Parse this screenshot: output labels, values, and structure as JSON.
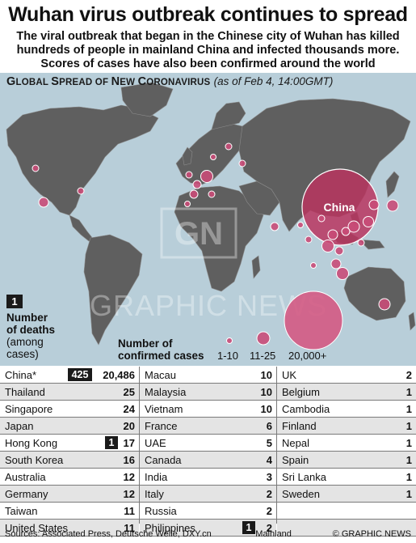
{
  "title": "Wuhan virus outbreak continues to spread",
  "intro": "The viral outbreak that began in the Chinese city of Wuhan has killed hundreds of people in mainland China and infected thousands more. Scores of cases have also been confirmed around the world",
  "map": {
    "title_G": "G",
    "title_lobal": "LOBAL ",
    "title_S": "S",
    "title_pread": "PREAD OF ",
    "title_N": "N",
    "title_ew": "EW ",
    "title_C": "C",
    "title_oronavirus": "ORONAVIRUS",
    "as_of": "(as of Feb 4, 14:00GMT)",
    "china_label": "China",
    "watermark_logo": "GN",
    "watermark_text": "GRAPHIC NEWS",
    "colors": {
      "ocean": "#b8ced9",
      "land": "#5f5f5f",
      "borders": "#8c8c8c",
      "bubble_fill": "#c94d78",
      "bubble_stroke": "#ffffff",
      "china_bubble": "#b9355f"
    }
  },
  "legend": {
    "deaths_box": "1",
    "deaths_line1": "Number",
    "deaths_line2": "of deaths",
    "deaths_line3": "(among",
    "deaths_line4": "cases)",
    "cases_line1": "Number of",
    "cases_line2": "confirmed cases",
    "size1": "1-10",
    "size2": "11-25",
    "size3": "20,000+"
  },
  "table": {
    "col1": [
      {
        "country": "China*",
        "deaths": "425",
        "cases": "20,486"
      },
      {
        "country": "Thailand",
        "deaths": "",
        "cases": "25"
      },
      {
        "country": "Singapore",
        "deaths": "",
        "cases": "24"
      },
      {
        "country": "Japan",
        "deaths": "",
        "cases": "20"
      },
      {
        "country": "Hong Kong",
        "deaths": "1",
        "cases": "17"
      },
      {
        "country": "South Korea",
        "deaths": "",
        "cases": "16"
      },
      {
        "country": "Australia",
        "deaths": "",
        "cases": "12"
      },
      {
        "country": "Germany",
        "deaths": "",
        "cases": "12"
      },
      {
        "country": "Taiwan",
        "deaths": "",
        "cases": "11"
      },
      {
        "country": "United States",
        "deaths": "",
        "cases": "11"
      }
    ],
    "col2": [
      {
        "country": "Macau",
        "deaths": "",
        "cases": "10"
      },
      {
        "country": "Malaysia",
        "deaths": "",
        "cases": "10"
      },
      {
        "country": "Vietnam",
        "deaths": "",
        "cases": "10"
      },
      {
        "country": "France",
        "deaths": "",
        "cases": "6"
      },
      {
        "country": "UAE",
        "deaths": "",
        "cases": "5"
      },
      {
        "country": "Canada",
        "deaths": "",
        "cases": "4"
      },
      {
        "country": "India",
        "deaths": "",
        "cases": "3"
      },
      {
        "country": "Italy",
        "deaths": "",
        "cases": "2"
      },
      {
        "country": "Russia",
        "deaths": "",
        "cases": "2"
      },
      {
        "country": "Philippines",
        "deaths": "1",
        "cases": "2"
      }
    ],
    "col3": [
      {
        "country": "UK",
        "deaths": "",
        "cases": "2"
      },
      {
        "country": "Belgium",
        "deaths": "",
        "cases": "1"
      },
      {
        "country": "Cambodia",
        "deaths": "",
        "cases": "1"
      },
      {
        "country": "Finland",
        "deaths": "",
        "cases": "1"
      },
      {
        "country": "Nepal",
        "deaths": "",
        "cases": "1"
      },
      {
        "country": "Spain",
        "deaths": "",
        "cases": "1"
      },
      {
        "country": "Sri Lanka",
        "deaths": "",
        "cases": "1"
      },
      {
        "country": "Sweden",
        "deaths": "",
        "cases": "1"
      },
      {
        "country": "",
        "deaths": "",
        "cases": ""
      },
      {
        "country": "",
        "deaths": "",
        "cases": ""
      }
    ]
  },
  "footer": {
    "sources": "Sources: Associated Press, Deutsche Welle, DXY.cn",
    "note": "*Mainland",
    "copyright": "© GRAPHIC NEWS"
  }
}
